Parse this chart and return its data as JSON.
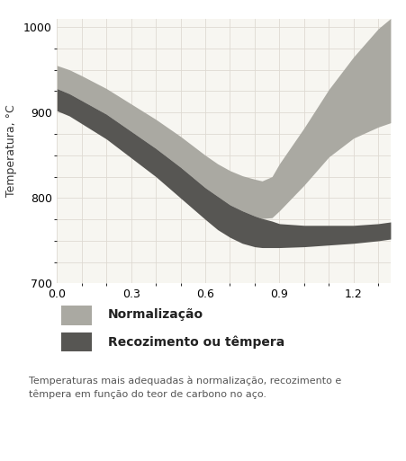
{
  "ylabel": "Temperatura, °C",
  "ylim": [
    700,
    1010
  ],
  "xlim": [
    0,
    1.35
  ],
  "xticks": [
    0,
    0.3,
    0.6,
    0.9,
    1.2
  ],
  "yticks": [
    700,
    800,
    900,
    1000
  ],
  "plot_bg_color": "#f7f6f1",
  "fig_bg_color": "#ffffff",
  "grid_color": "#dedad2",
  "legend_label_norm": "Normalização",
  "legend_label_rec": "Recozimento ou têmpera",
  "legend_color_norm": "#aaa9a2",
  "legend_color_rec": "#575653",
  "caption": "Temperaturas mais adequadas à normalização, recozimento e\ntêmpera em função do teor de carbono no aço.",
  "norm_upper_x": [
    0.0,
    0.05,
    0.1,
    0.2,
    0.3,
    0.4,
    0.5,
    0.6,
    0.65,
    0.7,
    0.75,
    0.8,
    0.83,
    0.87,
    0.9,
    1.0,
    1.1,
    1.2,
    1.3,
    1.35
  ],
  "norm_upper_y": [
    955,
    950,
    943,
    928,
    910,
    892,
    872,
    850,
    840,
    832,
    826,
    822,
    820,
    825,
    840,
    882,
    927,
    965,
    998,
    1010
  ],
  "norm_lower_x": [
    0.0,
    0.05,
    0.1,
    0.2,
    0.3,
    0.4,
    0.5,
    0.6,
    0.65,
    0.7,
    0.75,
    0.8,
    0.83,
    0.87,
    0.9,
    1.0,
    1.1,
    1.2,
    1.3,
    1.35
  ],
  "norm_lower_y": [
    928,
    922,
    914,
    898,
    878,
    858,
    836,
    812,
    802,
    792,
    785,
    779,
    776,
    777,
    785,
    815,
    848,
    870,
    883,
    888
  ],
  "rec_upper_x": [
    0.0,
    0.05,
    0.1,
    0.2,
    0.3,
    0.4,
    0.5,
    0.6,
    0.65,
    0.7,
    0.75,
    0.8,
    0.83,
    0.87,
    0.9,
    1.0,
    1.1,
    1.2,
    1.3,
    1.35
  ],
  "rec_upper_y": [
    928,
    922,
    914,
    898,
    878,
    858,
    836,
    812,
    802,
    792,
    785,
    779,
    776,
    773,
    770,
    768,
    768,
    768,
    770,
    772
  ],
  "rec_lower_x": [
    0.0,
    0.05,
    0.1,
    0.2,
    0.3,
    0.4,
    0.5,
    0.6,
    0.65,
    0.7,
    0.75,
    0.8,
    0.83,
    0.87,
    0.9,
    1.0,
    1.1,
    1.2,
    1.3,
    1.35
  ],
  "rec_lower_y": [
    902,
    896,
    887,
    869,
    847,
    825,
    800,
    775,
    763,
    754,
    747,
    743,
    742,
    742,
    742,
    743,
    745,
    747,
    750,
    752
  ]
}
